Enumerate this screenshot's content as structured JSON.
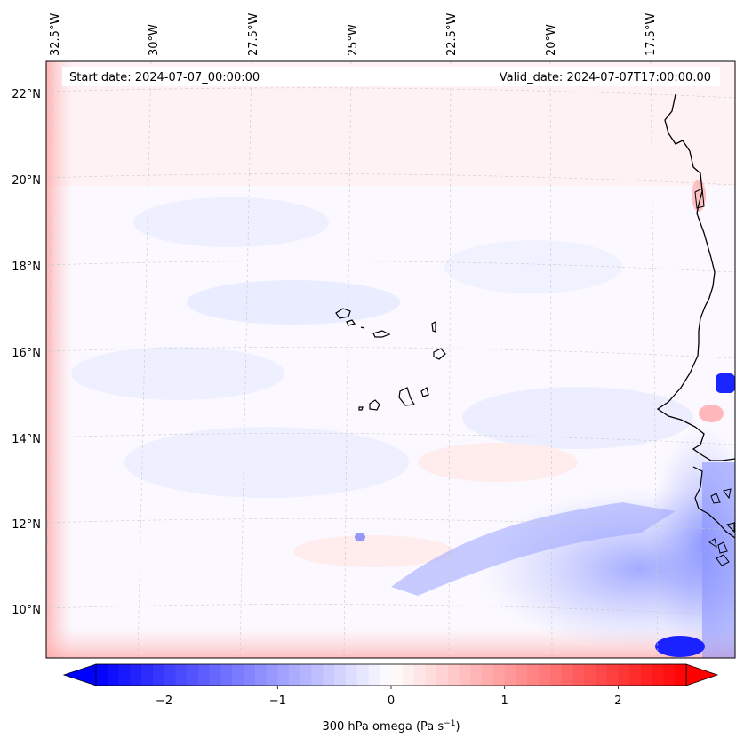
{
  "map": {
    "start_date": "Start date: 2024-07-07_00:00:00",
    "valid_date": "Valid_date: 2024-07-07T17:00:00.00",
    "lon_ticks": [
      "32.5°W",
      "30°W",
      "27.5°W",
      "25°W",
      "22.5°W",
      "20°W",
      "17.5°W"
    ],
    "lat_ticks": [
      "22°N",
      "20°N",
      "18°N",
      "16°N",
      "14°N",
      "12°N",
      "10°N"
    ]
  },
  "colorbar": {
    "label": "300 hPa omega (Pa s",
    "label_sup": "−1",
    "label_end": ")",
    "tick_labels": [
      "−2",
      "−1",
      "0",
      "1",
      "2"
    ],
    "tick_values": [
      -2,
      -1,
      0,
      1,
      2
    ],
    "range": [
      -2.6,
      2.6
    ],
    "levels": 52
  },
  "colors": {
    "negative": "#0000ff",
    "zero": "#ffffff",
    "positive": "#ff0000",
    "coast": "#000000"
  }
}
